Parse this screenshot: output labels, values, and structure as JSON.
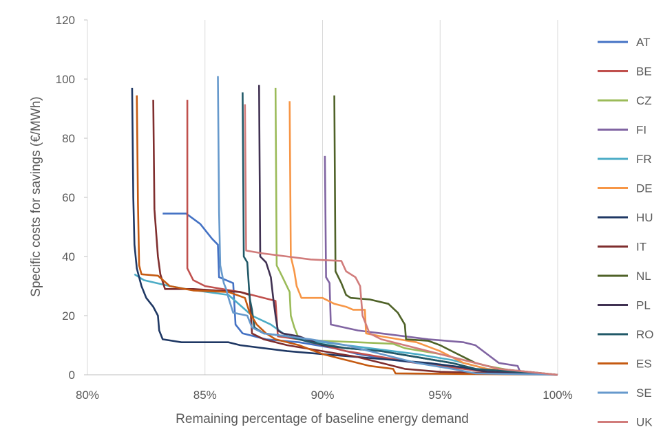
{
  "chart_data": {
    "type": "line",
    "xlabel": "Remaining percentage of baseline energy demand",
    "ylabel": "Specific costs for savings (€/MWh)",
    "xlim": [
      80,
      100
    ],
    "ylim": [
      0,
      120
    ],
    "x_ticks": [
      80,
      85,
      90,
      95,
      100
    ],
    "x_tick_labels": [
      "80%",
      "85%",
      "90%",
      "95%",
      "100%"
    ],
    "y_ticks": [
      0,
      20,
      40,
      60,
      80,
      100,
      120
    ],
    "y_tick_labels": [
      "0",
      "20",
      "40",
      "60",
      "80",
      "100",
      "120"
    ],
    "grid": "vertical",
    "legend_position": "right",
    "series": [
      {
        "name": "AT",
        "color": "#4472C4",
        "points": [
          [
            83.2,
            54.5
          ],
          [
            84.2,
            54.5
          ],
          [
            84.8,
            51
          ],
          [
            85.3,
            46
          ],
          [
            85.55,
            44
          ],
          [
            85.6,
            33
          ],
          [
            86.2,
            31
          ],
          [
            86.3,
            17
          ],
          [
            86.6,
            14
          ],
          [
            87.6,
            12
          ],
          [
            89.0,
            11
          ],
          [
            90.5,
            9
          ],
          [
            91.5,
            7
          ],
          [
            93.0,
            5
          ],
          [
            95.0,
            3
          ],
          [
            97.0,
            1.5
          ],
          [
            100,
            0
          ]
        ]
      },
      {
        "name": "BE",
        "color": "#C0504D",
        "points": [
          [
            84.25,
            93
          ],
          [
            84.25,
            36
          ],
          [
            84.5,
            32
          ],
          [
            85.0,
            30
          ],
          [
            86.5,
            28
          ],
          [
            87.0,
            27
          ],
          [
            87.5,
            26
          ],
          [
            88.0,
            25
          ],
          [
            88.1,
            13
          ],
          [
            89.0,
            12
          ],
          [
            90.0,
            10
          ],
          [
            91.0,
            8
          ],
          [
            92.5,
            6
          ],
          [
            94.0,
            4
          ],
          [
            95.5,
            2.5
          ],
          [
            97.0,
            1
          ],
          [
            100,
            0
          ]
        ]
      },
      {
        "name": "CZ",
        "color": "#9BBB59",
        "points": [
          [
            88.0,
            97
          ],
          [
            88.05,
            37
          ],
          [
            88.3,
            33
          ],
          [
            88.6,
            28
          ],
          [
            88.65,
            20
          ],
          [
            88.8,
            16
          ],
          [
            89.0,
            12
          ],
          [
            90.0,
            11.5
          ],
          [
            91.5,
            11
          ],
          [
            93.0,
            10.5
          ],
          [
            93.5,
            9
          ],
          [
            95.0,
            7
          ],
          [
            96.0,
            5
          ],
          [
            97.0,
            3
          ],
          [
            98.0,
            1.5
          ],
          [
            100,
            0
          ]
        ]
      },
      {
        "name": "FI",
        "color": "#8064A2",
        "points": [
          [
            90.1,
            74
          ],
          [
            90.15,
            33
          ],
          [
            90.3,
            31
          ],
          [
            90.35,
            17
          ],
          [
            91.5,
            15
          ],
          [
            92.5,
            14
          ],
          [
            93.5,
            13
          ],
          [
            94.5,
            12
          ],
          [
            96.0,
            11
          ],
          [
            96.5,
            10
          ],
          [
            97.0,
            7
          ],
          [
            97.5,
            4
          ],
          [
            98.3,
            3
          ],
          [
            98.4,
            1
          ],
          [
            100,
            0
          ]
        ]
      },
      {
        "name": "FR",
        "color": "#4BACC6",
        "points": [
          [
            82.0,
            34
          ],
          [
            82.4,
            32
          ],
          [
            83.5,
            30
          ],
          [
            84.2,
            29
          ],
          [
            86.0,
            27
          ],
          [
            87.0,
            20
          ],
          [
            87.8,
            17
          ],
          [
            88.5,
            13
          ],
          [
            90.0,
            11
          ],
          [
            92.0,
            9
          ],
          [
            94.0,
            7
          ],
          [
            95.5,
            5
          ],
          [
            96.5,
            3
          ],
          [
            97.5,
            1
          ],
          [
            100,
            0
          ]
        ]
      },
      {
        "name": "DE",
        "color": "#F79646",
        "points": [
          [
            88.6,
            92.5
          ],
          [
            88.65,
            40
          ],
          [
            88.8,
            35
          ],
          [
            88.9,
            30
          ],
          [
            89.1,
            26
          ],
          [
            90.0,
            26
          ],
          [
            90.5,
            24
          ],
          [
            91.0,
            23
          ],
          [
            91.3,
            22
          ],
          [
            91.8,
            22
          ],
          [
            91.85,
            14
          ],
          [
            92.5,
            13
          ],
          [
            94.0,
            11
          ],
          [
            95.0,
            8
          ],
          [
            96.0,
            4
          ],
          [
            97.0,
            2
          ],
          [
            100,
            0
          ]
        ]
      },
      {
        "name": "HU",
        "color": "#1F3864",
        "points": [
          [
            81.9,
            97
          ],
          [
            81.95,
            60
          ],
          [
            82.0,
            44
          ],
          [
            82.1,
            36
          ],
          [
            82.3,
            30
          ],
          [
            82.5,
            26
          ],
          [
            82.8,
            23
          ],
          [
            83.0,
            20
          ],
          [
            83.05,
            15
          ],
          [
            83.2,
            12
          ],
          [
            84.0,
            11
          ],
          [
            86.0,
            11
          ],
          [
            86.5,
            10
          ],
          [
            87.5,
            9
          ],
          [
            88.5,
            8
          ],
          [
            90.0,
            7
          ],
          [
            91.5,
            6
          ],
          [
            93.0,
            5
          ],
          [
            94.5,
            4
          ],
          [
            96.0,
            2.5
          ],
          [
            97.0,
            1
          ],
          [
            100,
            0
          ]
        ]
      },
      {
        "name": "IT",
        "color": "#7F2E2E",
        "points": [
          [
            82.8,
            93
          ],
          [
            82.85,
            56
          ],
          [
            83.0,
            40
          ],
          [
            83.1,
            34
          ],
          [
            83.3,
            29
          ],
          [
            84.5,
            29
          ],
          [
            86.5,
            28
          ],
          [
            86.9,
            27
          ],
          [
            87.0,
            14
          ],
          [
            87.5,
            12
          ],
          [
            88.5,
            10
          ],
          [
            90.0,
            8
          ],
          [
            91.5,
            6
          ],
          [
            92.5,
            4
          ],
          [
            93.5,
            2
          ],
          [
            95.0,
            1
          ],
          [
            100,
            0
          ]
        ]
      },
      {
        "name": "NL",
        "color": "#4F6228",
        "points": [
          [
            90.5,
            94.5
          ],
          [
            90.55,
            35
          ],
          [
            90.8,
            31
          ],
          [
            91.0,
            27
          ],
          [
            91.2,
            26
          ],
          [
            92.0,
            25.5
          ],
          [
            92.8,
            24
          ],
          [
            93.2,
            21
          ],
          [
            93.5,
            17
          ],
          [
            93.55,
            12
          ],
          [
            94.5,
            11.5
          ],
          [
            95.0,
            10
          ],
          [
            95.5,
            8
          ],
          [
            96.0,
            6
          ],
          [
            96.5,
            4
          ],
          [
            97.5,
            2
          ],
          [
            100,
            0
          ]
        ]
      },
      {
        "name": "PL",
        "color": "#403152",
        "points": [
          [
            87.3,
            98
          ],
          [
            87.35,
            40
          ],
          [
            87.6,
            38
          ],
          [
            87.8,
            33
          ],
          [
            87.9,
            26
          ],
          [
            88.0,
            20
          ],
          [
            88.1,
            15
          ],
          [
            88.3,
            14
          ],
          [
            89.0,
            13
          ],
          [
            90.0,
            10
          ],
          [
            91.0,
            9
          ],
          [
            92.5,
            8
          ],
          [
            94.0,
            6
          ],
          [
            95.5,
            4
          ],
          [
            96.5,
            2
          ],
          [
            97.0,
            1
          ],
          [
            100,
            0
          ]
        ]
      },
      {
        "name": "RO",
        "color": "#215968",
        "points": [
          [
            86.6,
            95.5
          ],
          [
            86.65,
            40
          ],
          [
            86.8,
            38
          ],
          [
            86.9,
            26
          ],
          [
            87.0,
            22
          ],
          [
            87.1,
            16
          ],
          [
            87.5,
            14
          ],
          [
            88.5,
            13
          ],
          [
            89.5,
            11
          ],
          [
            91.0,
            9
          ],
          [
            92.5,
            8
          ],
          [
            94.0,
            6
          ],
          [
            95.5,
            4
          ],
          [
            96.5,
            2
          ],
          [
            100,
            0
          ]
        ]
      },
      {
        "name": "ES",
        "color": "#C55A11",
        "points": [
          [
            82.1,
            94.5
          ],
          [
            82.15,
            58
          ],
          [
            82.2,
            37
          ],
          [
            82.3,
            34
          ],
          [
            83.0,
            33.5
          ],
          [
            83.5,
            30
          ],
          [
            84.5,
            28.5
          ],
          [
            86.0,
            28
          ],
          [
            86.7,
            26
          ],
          [
            86.9,
            21
          ],
          [
            87.2,
            17
          ],
          [
            87.6,
            14
          ],
          [
            88.0,
            12
          ],
          [
            89.0,
            10
          ],
          [
            90.0,
            7
          ],
          [
            91.0,
            5
          ],
          [
            92.0,
            3
          ],
          [
            93.0,
            2
          ],
          [
            93.1,
            0.5
          ],
          [
            100,
            0
          ]
        ]
      },
      {
        "name": "SE",
        "color": "#6699CC",
        "points": [
          [
            85.55,
            101
          ],
          [
            85.6,
            55
          ],
          [
            85.65,
            37
          ],
          [
            85.8,
            31
          ],
          [
            85.9,
            29
          ],
          [
            86.0,
            26
          ],
          [
            86.2,
            21
          ],
          [
            86.8,
            20
          ],
          [
            87.0,
            16
          ],
          [
            87.5,
            14
          ],
          [
            88.5,
            13
          ],
          [
            89.5,
            12
          ],
          [
            91.0,
            10
          ],
          [
            92.5,
            7
          ],
          [
            94.0,
            4
          ],
          [
            95.5,
            2
          ],
          [
            96.5,
            0.5
          ],
          [
            100,
            0
          ]
        ]
      },
      {
        "name": "UK",
        "color": "#D17C7B",
        "points": [
          [
            86.7,
            91.5
          ],
          [
            86.75,
            42
          ],
          [
            87.5,
            41
          ],
          [
            88.5,
            40
          ],
          [
            89.5,
            39
          ],
          [
            90.8,
            38.5
          ],
          [
            91.0,
            35
          ],
          [
            91.4,
            33
          ],
          [
            91.6,
            30
          ],
          [
            91.7,
            20
          ],
          [
            92.0,
            14
          ],
          [
            92.5,
            12
          ],
          [
            93.5,
            10
          ],
          [
            94.5,
            8
          ],
          [
            95.5,
            6
          ],
          [
            96.5,
            4
          ],
          [
            97.5,
            2
          ],
          [
            100,
            0
          ]
        ]
      }
    ]
  }
}
